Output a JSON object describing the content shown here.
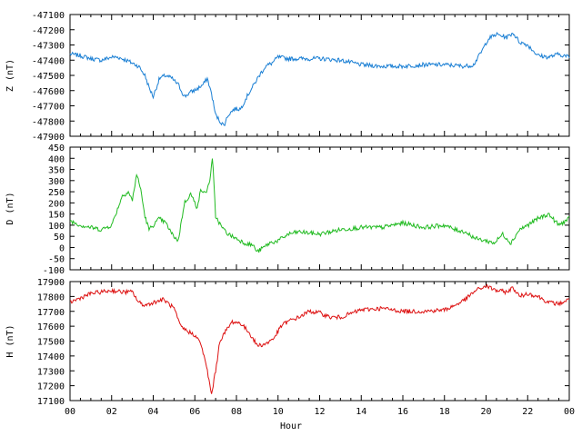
{
  "chart_data": [
    {
      "type": "line",
      "ylabel": "Z (nT)",
      "ylim": [
        -47900,
        -47100
      ],
      "yticks": [
        -47100,
        -47200,
        -47300,
        -47400,
        -47500,
        -47600,
        -47700,
        -47800,
        -47900
      ],
      "xlim": [
        0,
        24
      ],
      "color": "#1a7fd4",
      "series": [
        {
          "x": [
            0,
            0.5,
            1,
            1.5,
            2,
            2.3,
            2.7,
            3,
            3.3,
            3.6,
            3.8,
            4.0,
            4.3,
            4.6,
            4.9,
            5.2,
            5.5,
            5.8,
            6.1,
            6.4,
            6.6,
            6.8,
            7.0,
            7.2,
            7.4,
            7.6,
            7.9,
            8.2,
            8.5,
            8.8,
            9.1,
            9.4,
            9.7,
            10,
            10.5,
            11,
            12,
            13,
            14,
            15,
            16,
            17,
            18,
            19,
            19.4,
            19.8,
            20.1,
            20.5,
            21,
            21.3,
            21.6,
            22,
            22.5,
            23,
            23.5,
            24
          ],
          "y": [
            -47360,
            -47370,
            -47390,
            -47400,
            -47380,
            -47380,
            -47400,
            -47420,
            -47440,
            -47500,
            -47580,
            -47640,
            -47520,
            -47500,
            -47520,
            -47560,
            -47640,
            -47610,
            -47590,
            -47560,
            -47520,
            -47620,
            -47760,
            -47800,
            -47830,
            -47760,
            -47720,
            -47720,
            -47640,
            -47570,
            -47500,
            -47440,
            -47420,
            -47380,
            -47390,
            -47390,
            -47390,
            -47400,
            -47430,
            -47440,
            -47440,
            -47430,
            -47430,
            -47440,
            -47430,
            -47340,
            -47260,
            -47230,
            -47250,
            -47220,
            -47280,
            -47300,
            -47370,
            -47380,
            -47360,
            -47380
          ]
        }
      ]
    },
    {
      "type": "line",
      "ylabel": "D (nT)",
      "ylim": [
        -100,
        450
      ],
      "yticks": [
        450,
        400,
        350,
        300,
        250,
        200,
        150,
        100,
        50,
        0,
        -50,
        -100
      ],
      "xlim": [
        0,
        24
      ],
      "color": "#22bb22",
      "series": [
        {
          "x": [
            0,
            0.5,
            1,
            1.5,
            2,
            2.2,
            2.5,
            2.8,
            3.0,
            3.2,
            3.4,
            3.6,
            3.8,
            4.0,
            4.3,
            4.6,
            4.9,
            5.2,
            5.5,
            5.8,
            6.1,
            6.3,
            6.5,
            6.7,
            6.85,
            7.0,
            7.3,
            7.6,
            8.0,
            8.4,
            8.8,
            9.0,
            9.3,
            9.6,
            10,
            10.5,
            11,
            12,
            13,
            14,
            15,
            16,
            17,
            18,
            18.5,
            19,
            19.5,
            20,
            20.4,
            20.8,
            21.2,
            21.6,
            22,
            22.5,
            23,
            23.5,
            24
          ],
          "y": [
            120,
            100,
            90,
            80,
            100,
            150,
            230,
            250,
            210,
            330,
            260,
            140,
            80,
            100,
            130,
            110,
            60,
            30,
            200,
            240,
            180,
            260,
            240,
            290,
            400,
            140,
            90,
            60,
            40,
            20,
            10,
            -20,
            0,
            20,
            30,
            60,
            70,
            60,
            80,
            90,
            90,
            110,
            90,
            100,
            80,
            70,
            40,
            30,
            20,
            60,
            20,
            80,
            100,
            130,
            150,
            100,
            130
          ]
        }
      ]
    },
    {
      "type": "line",
      "ylabel": "H (nT)",
      "ylim": [
        17100,
        17900
      ],
      "yticks": [
        17900,
        17800,
        17700,
        17600,
        17500,
        17400,
        17300,
        17200,
        17100
      ],
      "xlim": [
        0,
        24
      ],
      "xlabel": "Hour",
      "xticklabels": [
        "00",
        "02",
        "04",
        "06",
        "08",
        "10",
        "12",
        "14",
        "16",
        "18",
        "20",
        "22",
        "00"
      ],
      "color": "#dd1111",
      "series": [
        {
          "x": [
            0,
            0.5,
            1,
            1.5,
            2,
            2.5,
            3,
            3.3,
            3.6,
            4,
            4.5,
            5,
            5.3,
            5.6,
            6,
            6.3,
            6.6,
            6.8,
            7.0,
            7.2,
            7.5,
            7.8,
            8.2,
            8.6,
            9,
            9.4,
            9.8,
            10.2,
            10.6,
            11,
            11.5,
            12,
            12.5,
            13,
            14,
            15,
            16,
            17,
            18,
            18.5,
            19,
            19.5,
            20,
            20.5,
            21,
            21.3,
            21.6,
            22,
            22.5,
            23,
            23.5,
            24
          ],
          "y": [
            17760,
            17790,
            17820,
            17830,
            17840,
            17830,
            17830,
            17760,
            17740,
            17760,
            17780,
            17720,
            17600,
            17570,
            17540,
            17480,
            17300,
            17140,
            17300,
            17500,
            17570,
            17630,
            17620,
            17560,
            17470,
            17480,
            17520,
            17610,
            17640,
            17660,
            17700,
            17690,
            17660,
            17660,
            17710,
            17720,
            17700,
            17700,
            17710,
            17740,
            17780,
            17840,
            17870,
            17840,
            17830,
            17860,
            17800,
            17820,
            17800,
            17760,
            17750,
            17780
          ]
        }
      ]
    }
  ]
}
